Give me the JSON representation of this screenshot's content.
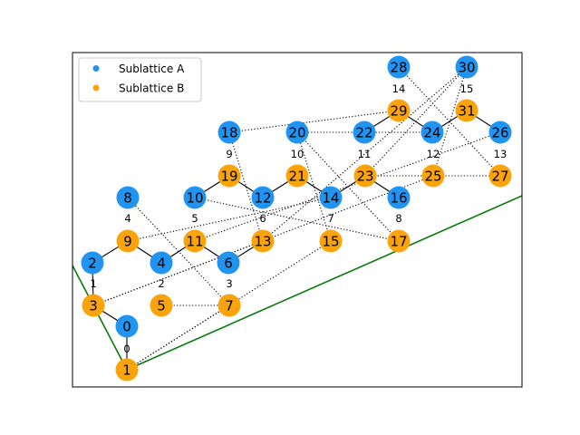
{
  "colors": {
    "sublattice_a": "#2193f1",
    "sublattice_b": "#fba30a",
    "boundary": "#0a7a0a",
    "bond": "#000000",
    "frame": "#000000"
  },
  "legend": {
    "placement": "top-left",
    "items": [
      {
        "label": "Sublattice A",
        "color": "#2193f1"
      },
      {
        "label": "Sublattice B",
        "color": "#fba30a"
      }
    ]
  },
  "nodes": [
    {
      "id": "0",
      "sub": "A"
    },
    {
      "id": "1",
      "sub": "B"
    },
    {
      "id": "2",
      "sub": "A"
    },
    {
      "id": "3",
      "sub": "B"
    },
    {
      "id": "4",
      "sub": "A"
    },
    {
      "id": "5",
      "sub": "B"
    },
    {
      "id": "6",
      "sub": "A"
    },
    {
      "id": "7",
      "sub": "B"
    },
    {
      "id": "8",
      "sub": "A"
    },
    {
      "id": "9",
      "sub": "B"
    },
    {
      "id": "10",
      "sub": "A"
    },
    {
      "id": "11",
      "sub": "B"
    },
    {
      "id": "12",
      "sub": "A"
    },
    {
      "id": "13",
      "sub": "B"
    },
    {
      "id": "14",
      "sub": "A"
    },
    {
      "id": "15",
      "sub": "B"
    },
    {
      "id": "16",
      "sub": "A"
    },
    {
      "id": "17",
      "sub": "B"
    },
    {
      "id": "18",
      "sub": "A"
    },
    {
      "id": "19",
      "sub": "B"
    },
    {
      "id": "20",
      "sub": "A"
    },
    {
      "id": "21",
      "sub": "B"
    },
    {
      "id": "22",
      "sub": "A"
    },
    {
      "id": "23",
      "sub": "B"
    },
    {
      "id": "24",
      "sub": "A"
    },
    {
      "id": "25",
      "sub": "B"
    },
    {
      "id": "26",
      "sub": "A"
    },
    {
      "id": "27",
      "sub": "B"
    },
    {
      "id": "28",
      "sub": "A"
    },
    {
      "id": "29",
      "sub": "B"
    },
    {
      "id": "30",
      "sub": "A"
    },
    {
      "id": "31",
      "sub": "B"
    }
  ],
  "cell_labels": [
    "0",
    "1",
    "2",
    "3",
    "4",
    "5",
    "6",
    "7",
    "8",
    "9",
    "10",
    "11",
    "12",
    "13",
    "14",
    "15"
  ],
  "solid_bonds": [
    [
      "1",
      "0"
    ],
    [
      "3",
      "0"
    ],
    [
      "3",
      "2"
    ],
    [
      "9",
      "2"
    ],
    [
      "9",
      "4"
    ],
    [
      "11",
      "4"
    ],
    [
      "11",
      "6"
    ],
    [
      "13",
      "6"
    ],
    [
      "19",
      "10"
    ],
    [
      "19",
      "12"
    ],
    [
      "21",
      "12"
    ],
    [
      "21",
      "14"
    ],
    [
      "23",
      "14"
    ],
    [
      "23",
      "16"
    ],
    [
      "29",
      "22"
    ],
    [
      "29",
      "24"
    ],
    [
      "31",
      "24"
    ],
    [
      "31",
      "26"
    ]
  ],
  "dotted_bonds": [
    [
      "1",
      "7"
    ],
    [
      "1",
      "15"
    ],
    [
      "3",
      "13"
    ],
    [
      "3",
      "25"
    ],
    [
      "5",
      "7"
    ],
    [
      "7",
      "8"
    ],
    [
      "9",
      "14"
    ],
    [
      "11",
      "26"
    ],
    [
      "13",
      "18"
    ],
    [
      "13",
      "30"
    ],
    [
      "15",
      "20"
    ],
    [
      "17",
      "20"
    ],
    [
      "17",
      "10"
    ],
    [
      "23",
      "27"
    ],
    [
      "23",
      "30"
    ],
    [
      "24",
      "20"
    ],
    [
      "27",
      "28"
    ],
    [
      "29",
      "18"
    ],
    [
      "25",
      "30"
    ]
  ]
}
